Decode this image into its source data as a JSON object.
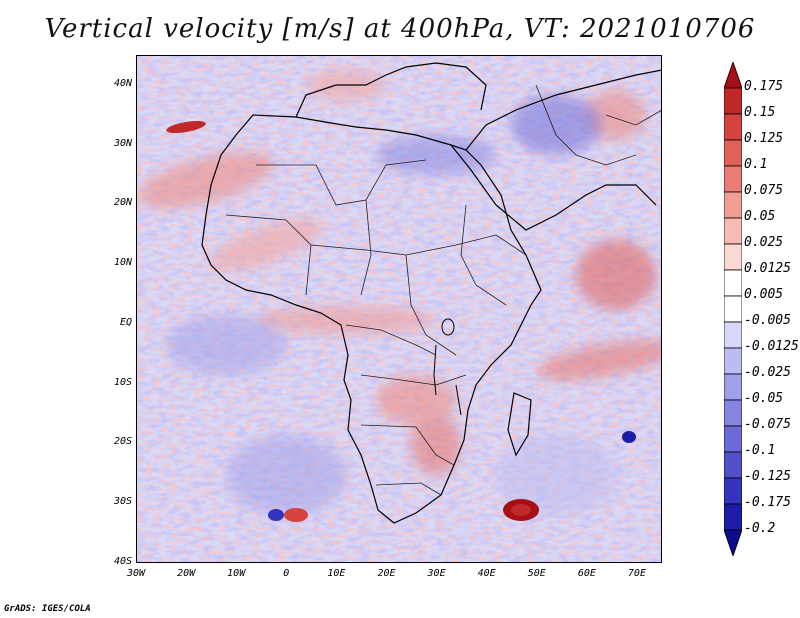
{
  "title": "Vertical velocity [m/s] at 400hPa, VT: 2021010706",
  "footer": "GrADS: IGES/COLA",
  "map": {
    "region": "Africa",
    "lat_labels": [
      "40N",
      "30N",
      "20N",
      "10N",
      "EQ",
      "10S",
      "20S",
      "30S",
      "40S"
    ],
    "lat_values": [
      40,
      30,
      20,
      10,
      0,
      -10,
      -20,
      -30,
      -40
    ],
    "lon_labels": [
      "30W",
      "20W",
      "10W",
      "0",
      "10E",
      "20E",
      "30E",
      "40E",
      "50E",
      "60E",
      "70E"
    ],
    "lon_values": [
      -30,
      -20,
      -10,
      0,
      10,
      20,
      30,
      40,
      50,
      60,
      70
    ],
    "lat_range": [
      -40,
      45
    ],
    "lon_range": [
      -30,
      75
    ]
  },
  "colorbar": {
    "labels": [
      "0.175",
      "0.15",
      "0.125",
      "0.1",
      "0.075",
      "0.05",
      "0.025",
      "0.0125",
      "0.005",
      "-0.005",
      "-0.0125",
      "-0.025",
      "-0.05",
      "-0.075",
      "-0.1",
      "-0.125",
      "-0.175",
      "-0.2"
    ],
    "colors": [
      "#a50f15",
      "#c0282a",
      "#d5433f",
      "#e0605a",
      "#ea7e76",
      "#f29d94",
      "#f7bbb3",
      "#fbd8d2",
      "#ffffff",
      "#ffffff",
      "#d8d8f8",
      "#bcbcf2",
      "#a0a0ea",
      "#8484e2",
      "#6a6ad8",
      "#5050cc",
      "#3434bc",
      "#1c1ca8",
      "#0c0c8c"
    ]
  }
}
